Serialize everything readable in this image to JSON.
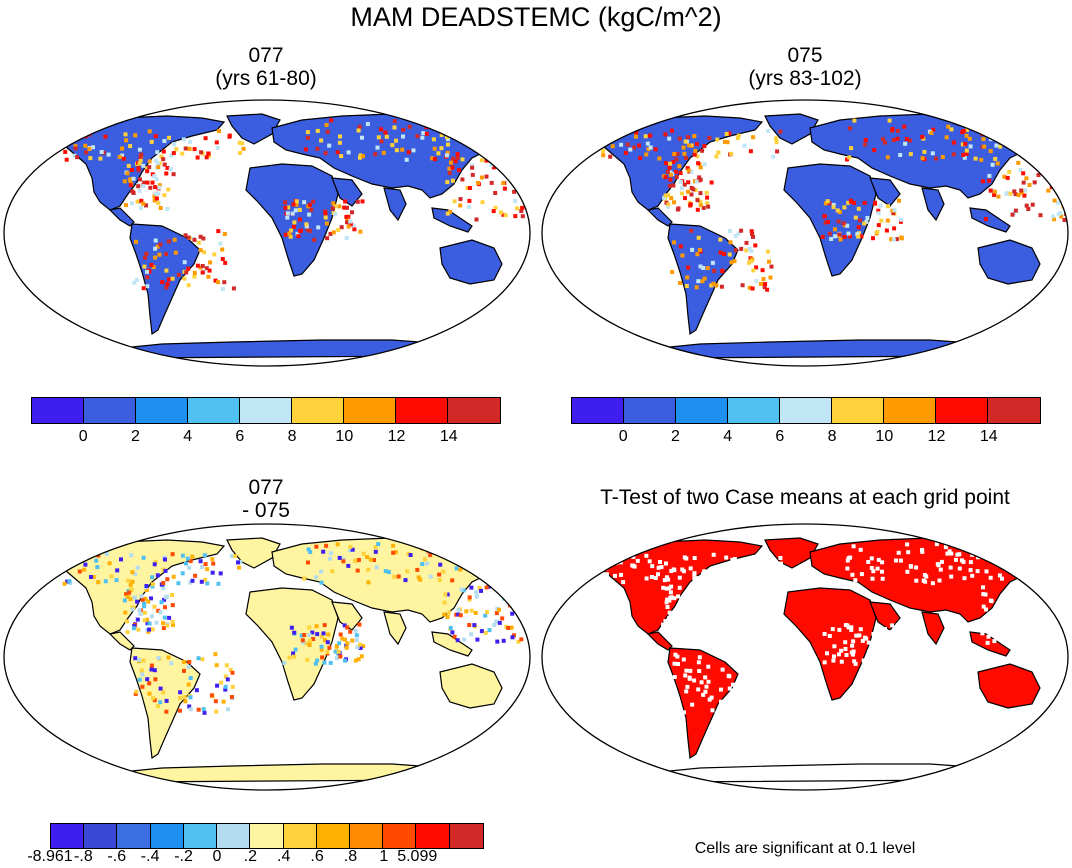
{
  "main_title": "MAM DEADSTEMC (kgC/m^2)",
  "panels": {
    "p077": {
      "title_line1": "077",
      "title_line2": "(yrs 61-80)"
    },
    "p075": {
      "title_line1": "075",
      "title_line2": "(yrs 83-102)"
    },
    "diff": {
      "title_line1": "077",
      "title_line2": "- 075"
    },
    "ttest": {
      "title_line1": "T-Test of two Case means at each grid point"
    }
  },
  "colorbar_main": {
    "colors": [
      "#3e1ff0",
      "#3b5ee0",
      "#2090f0",
      "#50c0f0",
      "#c0e6f6",
      "#ffd23c",
      "#ff9a00",
      "#ff0a00",
      "#d22828"
    ],
    "labels": [
      "0",
      "2",
      "4",
      "6",
      "8",
      "10",
      "12",
      "14"
    ]
  },
  "colorbar_diff": {
    "colors": [
      "#3e1ff0",
      "#3a48d6",
      "#3b6ee0",
      "#2090f0",
      "#50c0f0",
      "#b4dcf0",
      "#fff4a0",
      "#ffd23c",
      "#ffb000",
      "#ff8c00",
      "#ff4a00",
      "#ff0a00",
      "#d22828"
    ],
    "labels": [
      "-8.961",
      "-.8",
      "-.6",
      "-.4",
      "-.2",
      "0",
      ".2",
      ".4",
      ".6",
      ".8",
      "1",
      "5.099"
    ]
  },
  "ttest_note": "Cells are significant at 0.1 level",
  "significance_color": "#ff0a00"
}
